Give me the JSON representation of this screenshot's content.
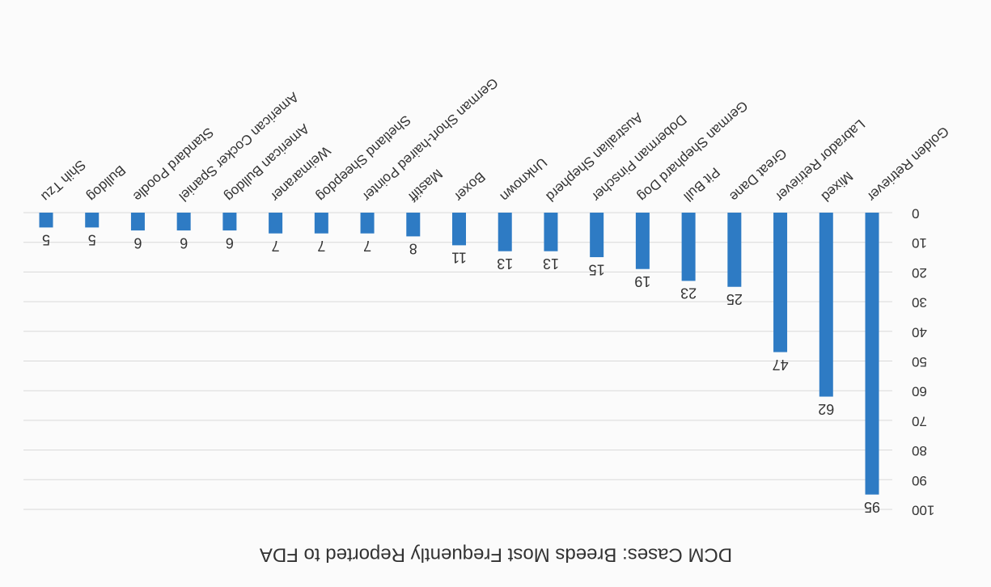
{
  "chart_data": {
    "type": "bar",
    "title": "DCM Cases: Breeds Most Frequently Reported to FDA",
    "categories": [
      "Golden Retriever",
      "Mixed",
      "Labrador Retriever",
      "Great Dane",
      "Pit Bull",
      "German Shephard Dog",
      "Doberman Pinscher",
      "Australian Shepherd",
      "Unknown",
      "Boxer",
      "Mastiff",
      "German Short-haired Pointer",
      "Shetland Sheepdog",
      "Weimaraner",
      "American Bulldog",
      "American Cocker Spaniel",
      "Standard Poodle",
      "Bulldog",
      "Shih Tzu"
    ],
    "values": [
      95,
      62,
      47,
      25,
      23,
      19,
      15,
      13,
      13,
      11,
      8,
      7,
      7,
      7,
      6,
      6,
      6,
      5,
      5
    ],
    "color": "#2e7bc4",
    "ylim": [
      0,
      100
    ],
    "yticks": [
      0,
      10,
      20,
      30,
      40,
      50,
      60,
      70,
      80,
      90,
      100
    ],
    "grid": true,
    "rotation": 180
  }
}
